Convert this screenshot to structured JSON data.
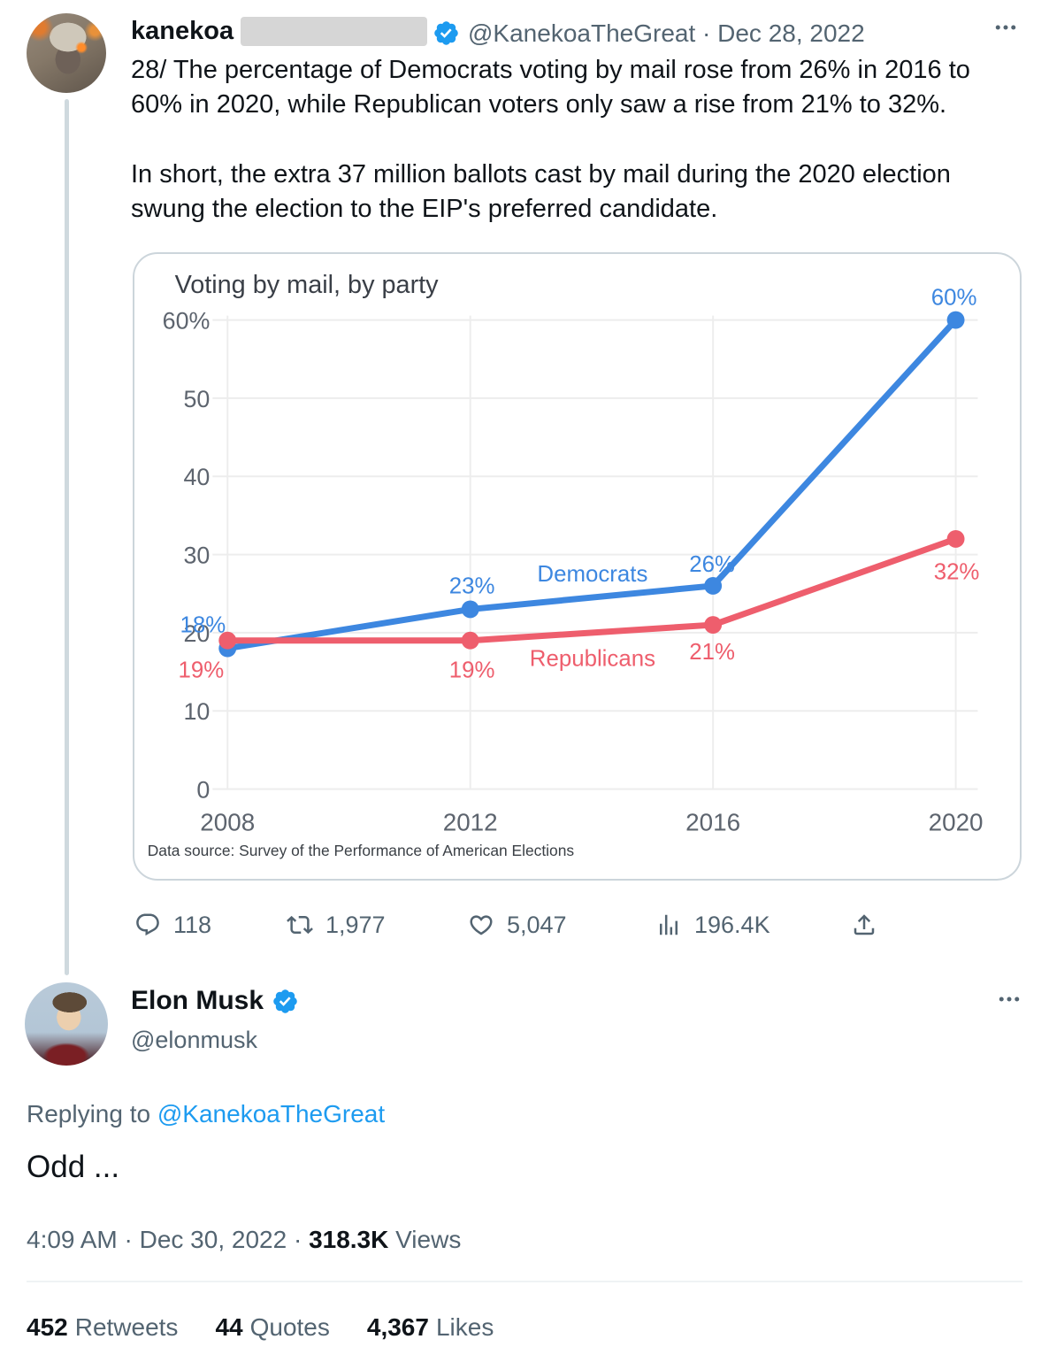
{
  "tweet": {
    "author": "kanekoa",
    "handle_date": "@KanekoaTheGreat · Dec 28, 2022",
    "paragraphs": [
      [
        "28/ The percentage of Democrats voting by mail rose from 26% in 2016 to",
        "60% in 2020, while Republican voters only saw a rise from 21% to 32%."
      ],
      [
        "In short, the extra 37 million ballots cast by mail during the 2020 election",
        "swung the election to the EIP's preferred candidate."
      ]
    ],
    "engagement": {
      "replies": "118",
      "retweets": "1,977",
      "likes": "5,047",
      "views": "196.4K"
    }
  },
  "chart_data": {
    "type": "line",
    "title": "Voting by mail, by party",
    "x": [
      2008,
      2012,
      2016,
      2020
    ],
    "series": [
      {
        "name": "Democrats",
        "values": [
          18,
          23,
          26,
          60
        ],
        "color": "#3d87e0"
      },
      {
        "name": "Republicans",
        "values": [
          19,
          19,
          21,
          32
        ],
        "color": "#ee5e6d"
      }
    ],
    "ylim": [
      0,
      60
    ],
    "yticks": [
      {
        "value": 60,
        "label": "60%"
      },
      {
        "value": 50,
        "label": "50"
      },
      {
        "value": 40,
        "label": "40"
      },
      {
        "value": 30,
        "label": "30"
      },
      {
        "value": 20,
        "label": "20"
      },
      {
        "value": 10,
        "label": "10"
      },
      {
        "value": 0,
        "label": "0"
      }
    ],
    "xlabel": "",
    "ylabel": "",
    "grid": true,
    "legend_position": "inline-labels",
    "source_note": "Data source:  Survey of the Performance of American Elections"
  },
  "reply": {
    "author": "Elon Musk",
    "handle": "@elonmusk",
    "replying_to_prefix": "Replying to ",
    "replying_to_handle": "@KanekoaTheGreat",
    "text": "Odd ...",
    "time_date": "4:09 AM · Dec 30, 2022 · ",
    "views_count": "318.3K",
    "views_label": " Views",
    "stats": [
      {
        "value": "452",
        "label": "Retweets"
      },
      {
        "value": "44",
        "label": "Quotes"
      },
      {
        "value": "4,367",
        "label": "Likes"
      }
    ]
  },
  "icons": {
    "verified": "blue-checkmark-seal",
    "more": "three-dots",
    "reply": "speech-bubble",
    "retweet": "retweet-arrows",
    "like": "heart",
    "views": "bar-chart",
    "share": "upload-arrow"
  },
  "colors": {
    "accent_blue": "#1d9bf0",
    "democrat_blue": "#3d87e0",
    "republican_red": "#ee5e6d",
    "text_dark": "#0f1419",
    "text_gray": "#536471"
  }
}
